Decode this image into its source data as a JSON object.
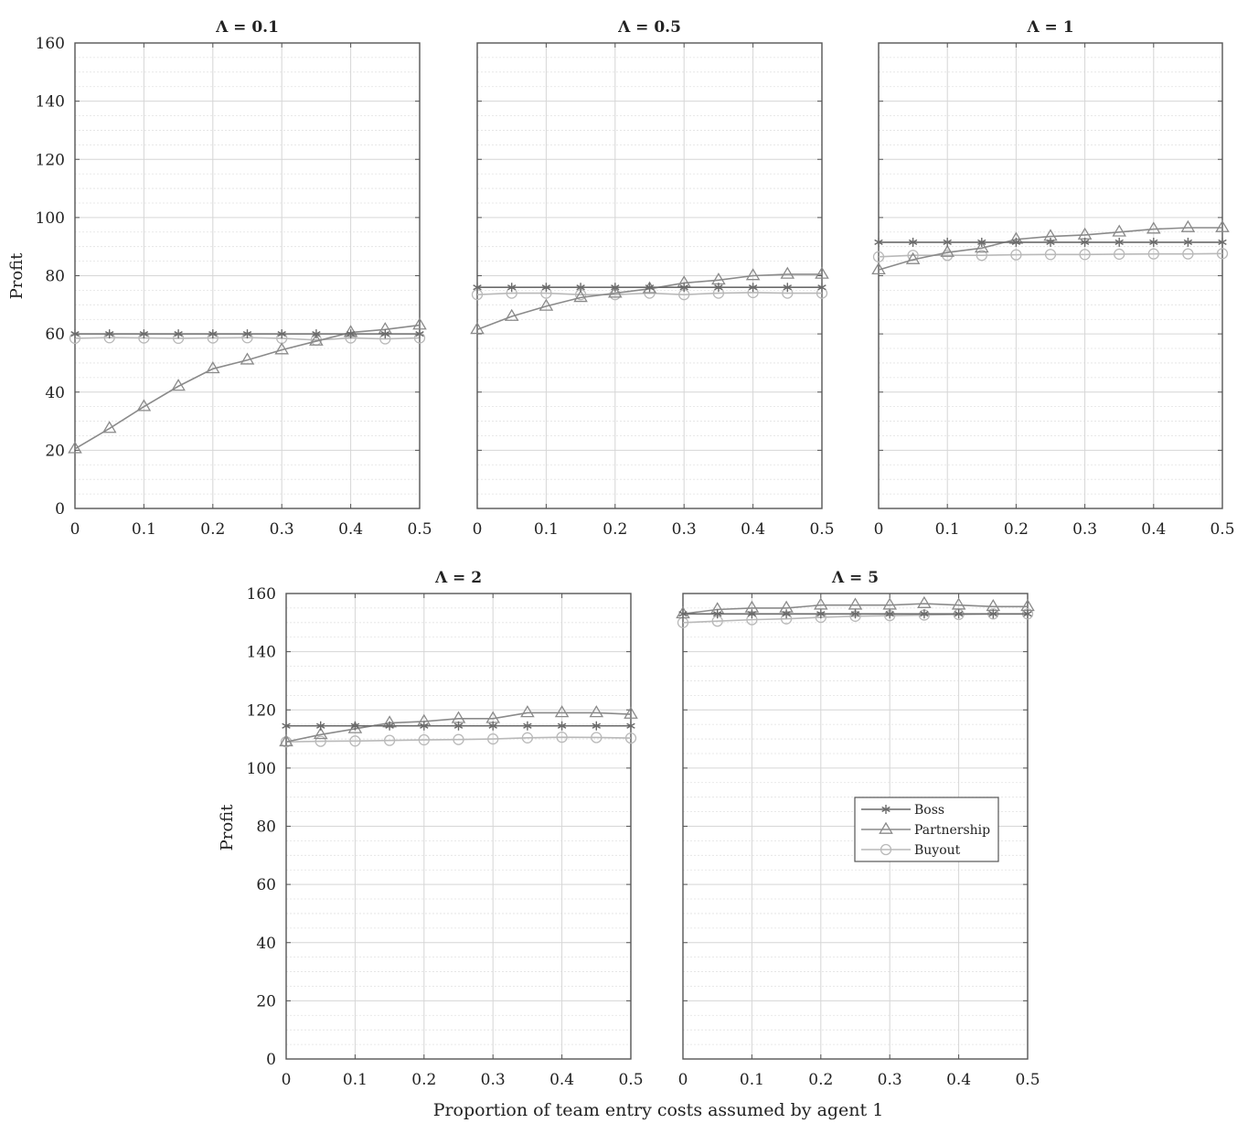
{
  "figure": {
    "xlabel": "Proportion of team entry costs assumed by agent 1",
    "ylabel": "Profit"
  },
  "legend": {
    "location": "inside panel Λ = 5, right-center",
    "items": [
      {
        "label": "Boss",
        "marker": "asterisk",
        "color": "#6a6a6a"
      },
      {
        "label": "Partnership",
        "marker": "triangle",
        "color": "#8a8a8a"
      },
      {
        "label": "Buyout",
        "marker": "circle",
        "color": "#b9b9b9"
      }
    ]
  },
  "chart_data": [
    {
      "type": "line",
      "title": "Λ = 0.1",
      "ylabel": "Profit",
      "xlim": [
        0,
        0.5
      ],
      "ylim": [
        0,
        160
      ],
      "xticks": [
        "0",
        "0.1",
        "0.2",
        "0.3",
        "0.4",
        "0.5"
      ],
      "yticks": [
        "0",
        "20",
        "40",
        "60",
        "80",
        "100",
        "120",
        "140",
        "160"
      ],
      "grid": true,
      "x": [
        0,
        0.05,
        0.1,
        0.15,
        0.2,
        0.25,
        0.3,
        0.35,
        0.4,
        0.45,
        0.5
      ],
      "series": [
        {
          "name": "Boss",
          "values": [
            60,
            60,
            60,
            60,
            60,
            60,
            60,
            60,
            60,
            60,
            60
          ]
        },
        {
          "name": "Partnership",
          "values": [
            20.5,
            27.5,
            35,
            42,
            48,
            51,
            54.5,
            57.5,
            60.5,
            61.5,
            63
          ]
        },
        {
          "name": "Buyout",
          "values": [
            58.5,
            58.7,
            58.6,
            58.5,
            58.6,
            58.7,
            58.5,
            57.9,
            58.6,
            58.3,
            58.6
          ]
        }
      ]
    },
    {
      "type": "line",
      "title": "Λ = 0.5",
      "xlim": [
        0,
        0.5
      ],
      "ylim": [
        0,
        160
      ],
      "xticks": [
        "0",
        "0.1",
        "0.2",
        "0.3",
        "0.4",
        "0.5"
      ],
      "grid": true,
      "x": [
        0,
        0.05,
        0.1,
        0.15,
        0.2,
        0.25,
        0.3,
        0.35,
        0.4,
        0.45,
        0.5
      ],
      "series": [
        {
          "name": "Boss",
          "values": [
            76,
            76,
            76,
            76,
            76,
            76,
            76,
            76,
            76,
            76,
            76
          ]
        },
        {
          "name": "Partnership",
          "values": [
            61.5,
            66,
            69.5,
            72.5,
            74,
            75.5,
            77.5,
            78.5,
            80,
            80.5,
            80.5
          ]
        },
        {
          "name": "Buyout",
          "values": [
            73.5,
            74,
            74,
            73.5,
            73.5,
            74,
            73.5,
            74,
            74.2,
            74,
            74
          ]
        }
      ]
    },
    {
      "type": "line",
      "title": "Λ = 1",
      "xlim": [
        0,
        0.5
      ],
      "ylim": [
        0,
        160
      ],
      "xticks": [
        "0",
        "0.1",
        "0.2",
        "0.3",
        "0.4",
        "0.5"
      ],
      "grid": true,
      "x": [
        0,
        0.05,
        0.1,
        0.15,
        0.2,
        0.25,
        0.3,
        0.35,
        0.4,
        0.45,
        0.5
      ],
      "series": [
        {
          "name": "Boss",
          "values": [
            91.5,
            91.5,
            91.5,
            91.5,
            91.5,
            91.5,
            91.5,
            91.5,
            91.5,
            91.5,
            91.5
          ]
        },
        {
          "name": "Partnership",
          "values": [
            82,
            85.5,
            88,
            89.5,
            92.5,
            93.5,
            94,
            95,
            96,
            96.5,
            96.5
          ]
        },
        {
          "name": "Buyout",
          "values": [
            86.5,
            87,
            87,
            87,
            87.2,
            87.3,
            87.3,
            87.4,
            87.5,
            87.5,
            87.6
          ]
        }
      ]
    },
    {
      "type": "line",
      "title": "Λ = 2",
      "ylabel": "Profit",
      "xlim": [
        0,
        0.5
      ],
      "ylim": [
        0,
        160
      ],
      "xticks": [
        "0",
        "0.1",
        "0.2",
        "0.3",
        "0.4",
        "0.5"
      ],
      "yticks": [
        "0",
        "20",
        "40",
        "60",
        "80",
        "100",
        "120",
        "140",
        "160"
      ],
      "grid": true,
      "x": [
        0,
        0.05,
        0.1,
        0.15,
        0.2,
        0.25,
        0.3,
        0.35,
        0.4,
        0.45,
        0.5
      ],
      "series": [
        {
          "name": "Boss",
          "values": [
            114.5,
            114.5,
            114.5,
            114.5,
            114.5,
            114.5,
            114.5,
            114.5,
            114.5,
            114.5,
            114.5
          ]
        },
        {
          "name": "Partnership",
          "values": [
            109,
            111.5,
            113.5,
            115.5,
            116,
            117,
            117,
            119,
            119,
            119,
            118.5
          ]
        },
        {
          "name": "Buyout",
          "values": [
            109,
            109.2,
            109.3,
            109.5,
            109.7,
            109.8,
            110,
            110.4,
            110.6,
            110.5,
            110.3
          ]
        }
      ]
    },
    {
      "type": "line",
      "title": "Λ = 5",
      "xlim": [
        0,
        0.5
      ],
      "ylim": [
        0,
        160
      ],
      "xticks": [
        "0",
        "0.1",
        "0.2",
        "0.3",
        "0.4",
        "0.5"
      ],
      "grid": true,
      "legend": "right-center",
      "x": [
        0,
        0.05,
        0.1,
        0.15,
        0.2,
        0.25,
        0.3,
        0.35,
        0.4,
        0.45,
        0.5
      ],
      "series": [
        {
          "name": "Boss",
          "values": [
            153,
            153,
            153,
            153,
            153,
            153,
            153,
            153,
            153,
            153,
            153
          ]
        },
        {
          "name": "Partnership",
          "values": [
            153,
            154.5,
            155,
            155,
            156,
            156,
            156,
            156.5,
            156,
            155.5,
            155.5
          ]
        },
        {
          "name": "Buyout",
          "values": [
            150,
            150.5,
            151,
            151.3,
            151.8,
            152.2,
            152.4,
            152.6,
            152.8,
            153,
            153
          ]
        }
      ]
    }
  ]
}
